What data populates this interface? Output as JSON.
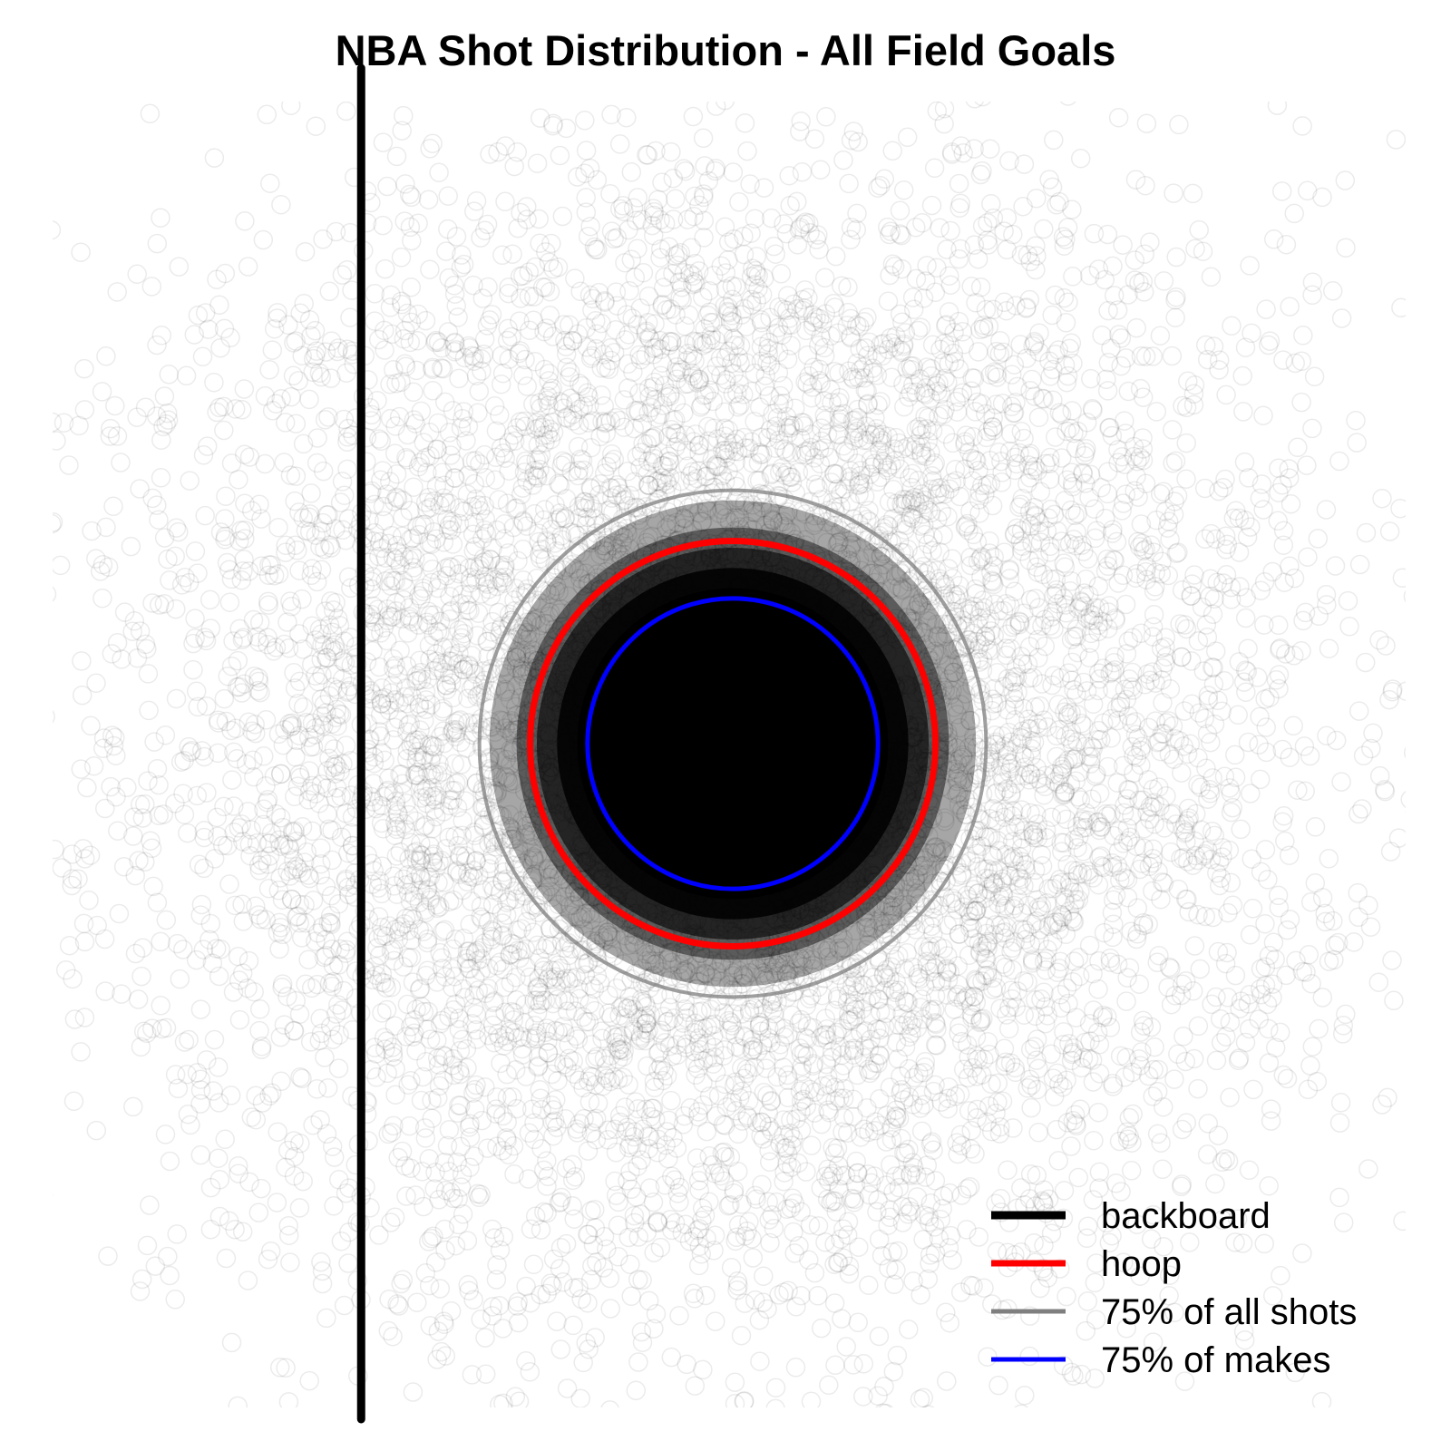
{
  "chart_data": {
    "type": "scatter",
    "title": "NBA Shot Distribution - All Field Goals",
    "xlabel": "",
    "ylabel": "",
    "grid": false,
    "axes_visible": false,
    "legend_placement": "bottom-right",
    "xlim": [
      -11,
      11
    ],
    "ylim": [
      -11,
      11
    ],
    "point_style": {
      "shape": "open-circle",
      "color": "#000000",
      "alpha": 0.08
    },
    "point_cloud": {
      "center": [
        0,
        0
      ],
      "approx_std": 4.2,
      "approx_count": 25000
    },
    "colors": {
      "backboard": "#000000",
      "hoop": "#ff0000",
      "all_shots": "#7f7f7f",
      "makes": "#0000ff"
    },
    "reference_lines": {
      "backboard": {
        "x": -5.5,
        "y_range": [
          -10,
          10
        ]
      },
      "hoop": {
        "center": [
          0,
          0
        ],
        "radius": 3.0
      },
      "all_shots_75": {
        "center": [
          0,
          0
        ],
        "radius": 3.75
      },
      "makes_75": {
        "center": [
          0,
          0
        ],
        "radius": 2.15
      }
    },
    "legend": [
      {
        "key": "backboard",
        "label": "backboard"
      },
      {
        "key": "hoop",
        "label": "hoop"
      },
      {
        "key": "all_shots",
        "label": "75% of all shots"
      },
      {
        "key": "makes",
        "label": "75% of makes"
      }
    ]
  }
}
